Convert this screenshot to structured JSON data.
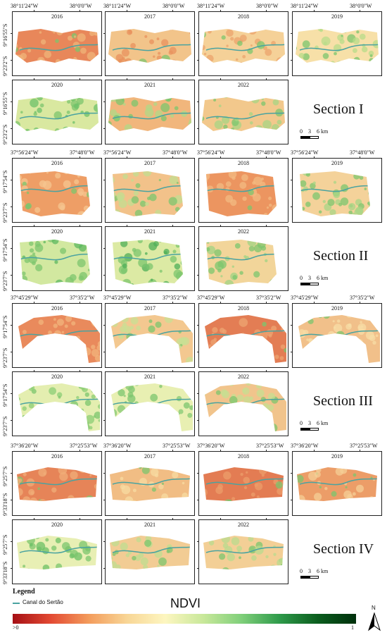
{
  "sections": [
    {
      "title": "Section I",
      "lon_left": "38°11'24\"W",
      "lon_right": "38°0'0\"W",
      "lat_top": "9°16'55\"S",
      "lat_bottom": "9°23'2\"S",
      "shape": "s1",
      "panels": [
        {
          "year": "2016",
          "fill": "#e8875a",
          "accent": "#f0b47a",
          "green": 0.05
        },
        {
          "year": "2017",
          "fill": "#f2c48a",
          "accent": "#e8915e",
          "green": 0.15
        },
        {
          "year": "2018",
          "fill": "#f5d198",
          "accent": "#eba36c",
          "green": 0.2
        },
        {
          "year": "2019",
          "fill": "#f7e0a8",
          "accent": "#b8dc8a",
          "green": 0.35
        },
        {
          "year": "2020",
          "fill": "#d9e8a0",
          "accent": "#6cc26a",
          "green": 0.6
        },
        {
          "year": "2021",
          "fill": "#f1b67c",
          "accent": "#b0d887",
          "green": 0.3
        },
        {
          "year": "2022",
          "fill": "#f2c88c",
          "accent": "#a7d584",
          "green": 0.35
        }
      ]
    },
    {
      "title": "Section II",
      "lon_left": "37°56'24\"W",
      "lon_right": "37°48'0\"W",
      "lat_top": "9°17'54\"S",
      "lat_bottom": "9°23'7\"S",
      "shape": "s2",
      "panels": [
        {
          "year": "2016",
          "fill": "#ee9e66",
          "accent": "#f5c690",
          "green": 0.15
        },
        {
          "year": "2017",
          "fill": "#f2c28a",
          "accent": "#c2de90",
          "green": 0.3
        },
        {
          "year": "2018",
          "fill": "#ec9560",
          "accent": "#f3bb82",
          "green": 0.1
        },
        {
          "year": "2019",
          "fill": "#f4d29a",
          "accent": "#a8d685",
          "green": 0.4
        },
        {
          "year": "2020",
          "fill": "#d2e8a0",
          "accent": "#5cb860",
          "green": 0.7
        },
        {
          "year": "2021",
          "fill": "#dceaa4",
          "accent": "#4faf58",
          "green": 0.6
        },
        {
          "year": "2022",
          "fill": "#f2d59a",
          "accent": "#a0d383",
          "green": 0.45
        }
      ]
    },
    {
      "title": "Section III",
      "lon_left": "37°45'29\"W",
      "lon_right": "37°35'2\"W",
      "lat_top": "9°17'54\"S",
      "lat_bottom": "9°23'7\"S",
      "shape": "s3",
      "panels": [
        {
          "year": "2016",
          "fill": "#e98a5c",
          "accent": "#f2b47c",
          "green": 0.05
        },
        {
          "year": "2017",
          "fill": "#f3c890",
          "accent": "#c8e094",
          "green": 0.25
        },
        {
          "year": "2018",
          "fill": "#e37d54",
          "accent": "#eea672",
          "green": 0.05
        },
        {
          "year": "2019",
          "fill": "#f1c08a",
          "accent": "#f7dea6",
          "green": 0.2
        },
        {
          "year": "2020",
          "fill": "#e4eeb0",
          "accent": "#8ccd76",
          "green": 0.55
        },
        {
          "year": "2021",
          "fill": "#e8efb2",
          "accent": "#86ca74",
          "green": 0.55
        },
        {
          "year": "2022",
          "fill": "#f1c48c",
          "accent": "#c5df92",
          "green": 0.3
        }
      ]
    },
    {
      "title": "Section IV",
      "lon_left": "37°36'20\"W",
      "lon_right": "37°25'53\"W",
      "lat_top": "9°25'7\"S",
      "lat_bottom": "9°33'18\"S",
      "shape": "s4",
      "panels": [
        {
          "year": "2016",
          "fill": "#e68458",
          "accent": "#f0ae78",
          "green": 0.1
        },
        {
          "year": "2017",
          "fill": "#f1bd84",
          "accent": "#f7dca2",
          "green": 0.2
        },
        {
          "year": "2018",
          "fill": "#e37c53",
          "accent": "#ec9d6a",
          "green": 0.1
        },
        {
          "year": "2019",
          "fill": "#ec9d68",
          "accent": "#f5cf96",
          "green": 0.15
        },
        {
          "year": "2020",
          "fill": "#e8efb4",
          "accent": "#6cc066",
          "green": 0.6
        },
        {
          "year": "2021",
          "fill": "#f2cc94",
          "accent": "#bfdd90",
          "green": 0.3
        },
        {
          "year": "2022",
          "fill": "#f3cf96",
          "accent": "#b9db8d",
          "green": 0.3
        }
      ]
    }
  ],
  "scalebar": {
    "n0": "0",
    "n3": "3",
    "n6": "6 km"
  },
  "legend": {
    "heading": "Legend",
    "canal_label": "Canal do Sertão",
    "canal_color": "#4aa3a0",
    "ndvi_title": "NDVI",
    "ndvi_min": ">0",
    "ndvi_max": "1",
    "ndvi_colors": [
      "#a50f15",
      "#e34a33",
      "#f39c5c",
      "#f8d696",
      "#fdf6c0",
      "#c8e89a",
      "#7fcf7a",
      "#2e9a4a",
      "#0b5d1e",
      "#00300c"
    ]
  },
  "north_arrow": {
    "label": "N"
  }
}
